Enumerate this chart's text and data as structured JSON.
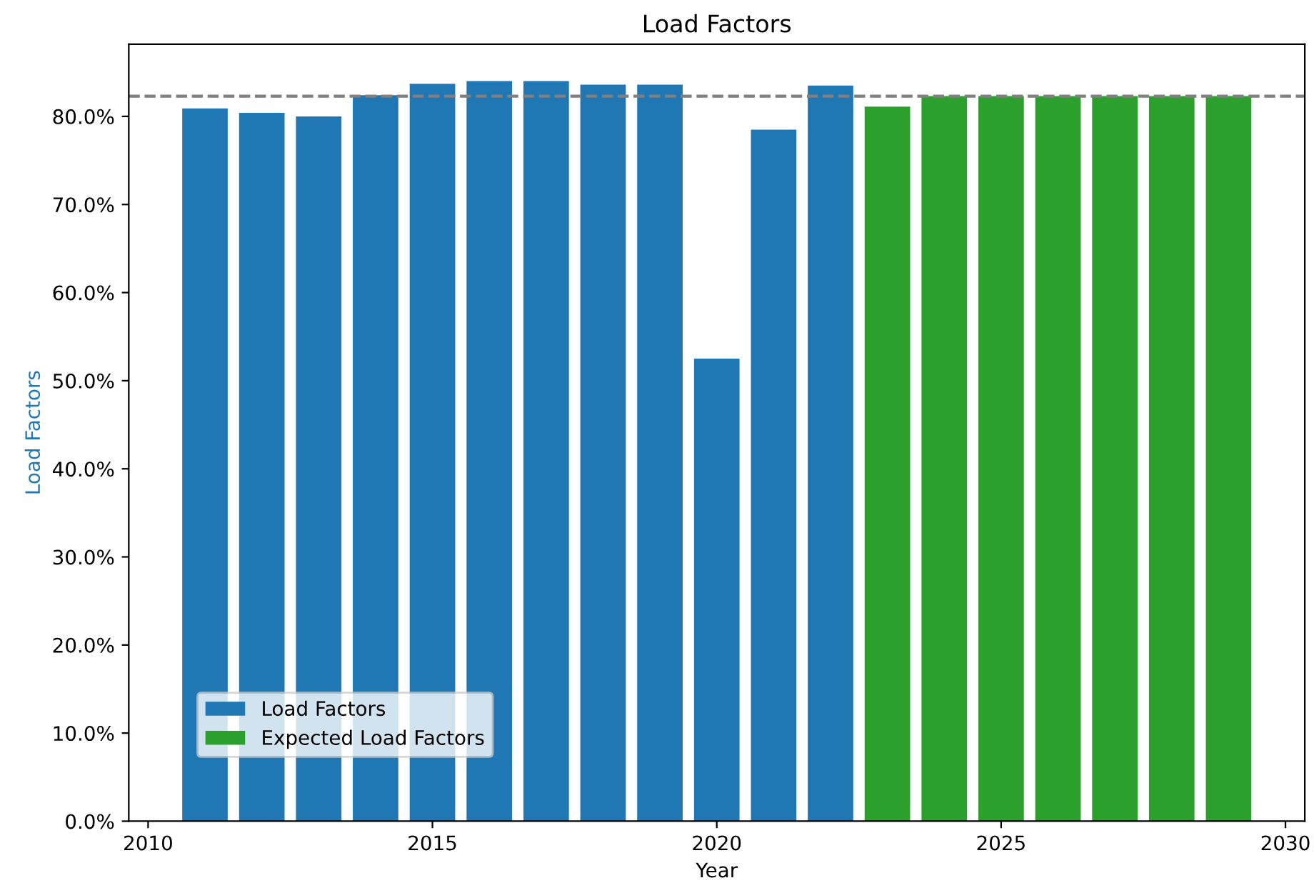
{
  "chart_data": {
    "type": "bar",
    "title": "Load Factors",
    "xlabel": "Year",
    "ylabel": "Load Factors",
    "series": [
      {
        "name": "Load Factors",
        "color": "#1f77b4",
        "x": [
          2011,
          2012,
          2013,
          2014,
          2015,
          2016,
          2017,
          2018,
          2019,
          2020,
          2021,
          2022
        ],
        "values": [
          80.9,
          80.4,
          80.0,
          82.4,
          83.7,
          84.0,
          84.0,
          83.6,
          83.6,
          52.5,
          78.5,
          83.5
        ]
      },
      {
        "name": "Expected Load Factors",
        "color": "#2ca02c",
        "x": [
          2023,
          2024,
          2025,
          2026,
          2027,
          2028,
          2029
        ],
        "values": [
          81.1,
          82.3,
          82.3,
          82.3,
          82.3,
          82.3,
          82.3
        ]
      }
    ],
    "xlim": [
      2009.66,
      2030.34
    ],
    "xticks": [
      2010,
      2015,
      2020,
      2025,
      2030
    ],
    "ylim": [
      0,
      88.2
    ],
    "yticks": [
      {
        "value": 0,
        "label": "0.0%"
      },
      {
        "value": 10,
        "label": "10.0%"
      },
      {
        "value": 20,
        "label": "20.0%"
      },
      {
        "value": 30,
        "label": "30.0%"
      },
      {
        "value": 40,
        "label": "40.0%"
      },
      {
        "value": 50,
        "label": "50.0%"
      },
      {
        "value": 60,
        "label": "60.0%"
      },
      {
        "value": 70,
        "label": "70.0%"
      },
      {
        "value": 80,
        "label": "80.0%"
      }
    ],
    "ref_lines": [
      {
        "axis": "y",
        "value": 82.3,
        "color": "#808080",
        "line_style": "dashed"
      }
    ],
    "legend": "bottom left",
    "grid": false
  }
}
